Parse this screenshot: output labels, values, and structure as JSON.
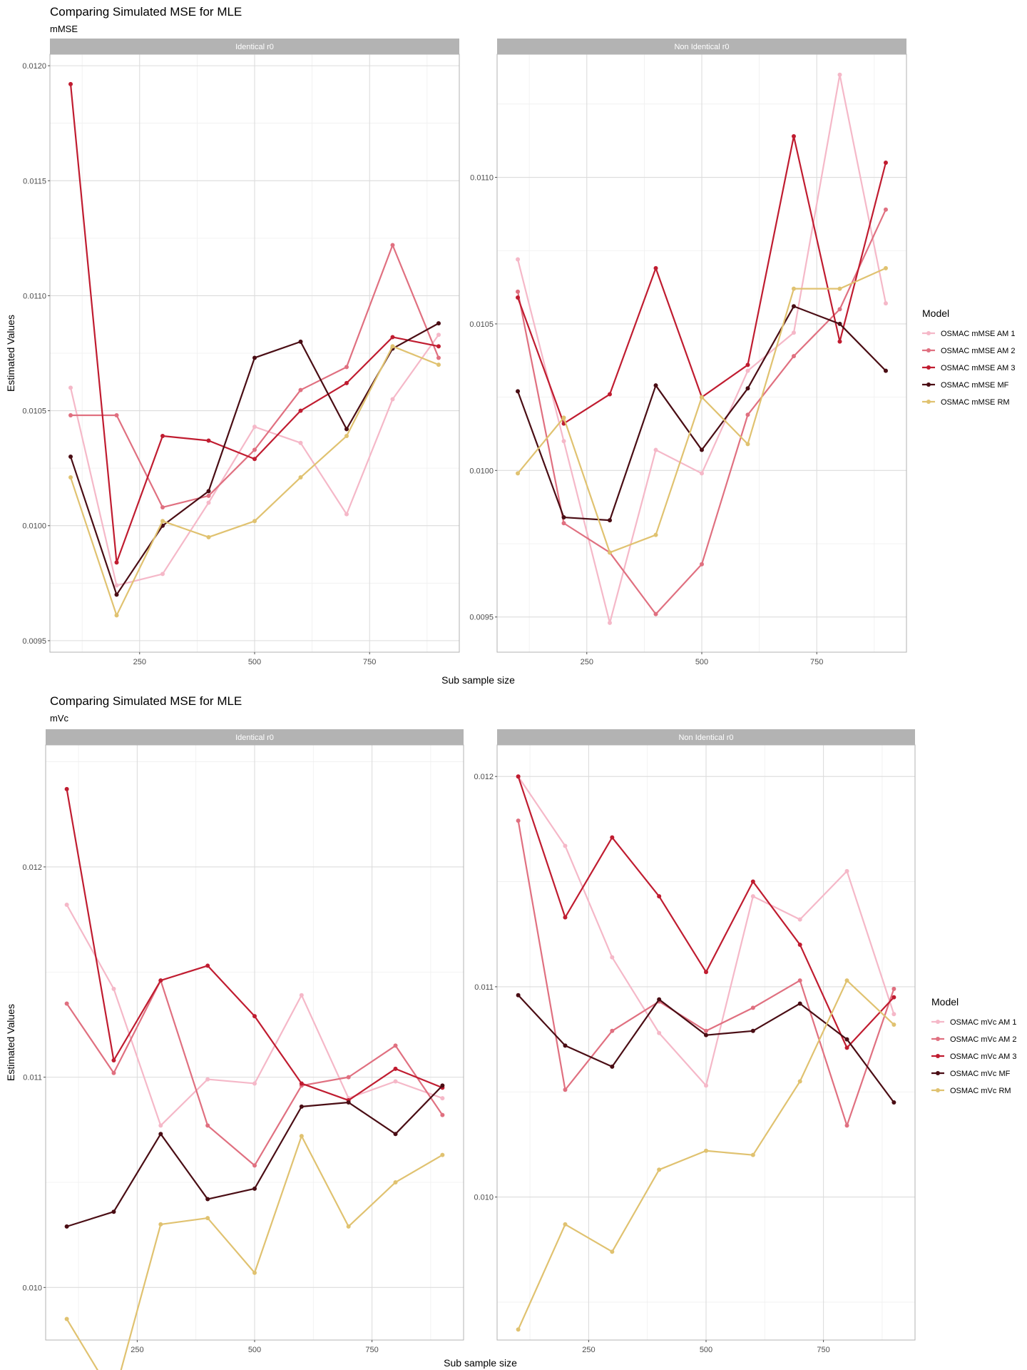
{
  "colors": {
    "AM1": "#f5b8c8",
    "AM2": "#e07080",
    "AM3": "#c01c30",
    "MF": "#4a0d14",
    "RM": "#e0c270"
  },
  "chart_data": [
    {
      "type": "line",
      "title": "Comparing Simulated MSE for MLE",
      "subtitle": "mMSE",
      "xlabel": "Sub sample size",
      "ylabel": "Estimated Values",
      "legend_title": "Model",
      "legend_position": "right",
      "x": [
        100,
        200,
        300,
        400,
        500,
        600,
        700,
        800,
        900
      ],
      "x_ticks": [
        250,
        500,
        750
      ],
      "panels": [
        {
          "strip": "Identical r0",
          "ylim": [
            0.00945,
            0.01205
          ],
          "y_ticks": [
            0.0095,
            0.01,
            0.0105,
            0.011,
            0.0115,
            0.012
          ],
          "y_tick_labels": [
            "0.0095",
            "0.0100",
            "0.0105",
            "0.0110",
            "0.0115",
            "0.0120"
          ],
          "series": [
            {
              "key": "AM1",
              "values": [
                0.0106,
                0.00974,
                0.00979,
                0.0101,
                0.01043,
                0.01036,
                0.01005,
                0.01055,
                0.01083
              ]
            },
            {
              "key": "AM2",
              "values": [
                0.01048,
                0.01048,
                0.01008,
                0.01013,
                0.01033,
                0.01059,
                0.01069,
                0.01122,
                0.01073
              ]
            },
            {
              "key": "AM3",
              "values": [
                0.01192,
                0.00984,
                0.01039,
                0.01037,
                0.01029,
                0.0105,
                0.01062,
                0.01082,
                0.01078
              ]
            },
            {
              "key": "MF",
              "values": [
                0.0103,
                0.0097,
                0.01,
                0.01015,
                0.01073,
                0.0108,
                0.01042,
                0.01077,
                0.01088
              ]
            },
            {
              "key": "RM",
              "values": [
                0.01021,
                0.00961,
                0.01002,
                0.00995,
                0.01002,
                0.01021,
                0.01039,
                0.01078,
                0.0107
              ]
            }
          ]
        },
        {
          "strip": "Non Identical r0",
          "ylim": [
            0.00938,
            0.01142
          ],
          "y_ticks": [
            0.0095,
            0.01,
            0.0105,
            0.011
          ],
          "y_tick_labels": [
            "0.0095",
            "0.0100",
            "0.0105",
            "0.0110"
          ],
          "series": [
            {
              "key": "AM1",
              "values": [
                0.01072,
                0.0101,
                0.00948,
                0.01007,
                0.00999,
                0.01034,
                0.01047,
                0.01135,
                0.01057
              ]
            },
            {
              "key": "AM2",
              "values": [
                0.01061,
                0.00982,
                0.00972,
                0.00951,
                0.00968,
                0.01019,
                0.01039,
                0.01055,
                0.01089
              ]
            },
            {
              "key": "AM3",
              "values": [
                0.01059,
                0.01016,
                0.01026,
                0.01069,
                0.01025,
                0.01036,
                0.01114,
                0.01044,
                0.01105
              ]
            },
            {
              "key": "MF",
              "values": [
                0.01027,
                0.00984,
                0.00983,
                0.01029,
                0.01007,
                0.01028,
                0.01056,
                0.0105,
                0.01034
              ]
            },
            {
              "key": "RM",
              "values": [
                0.00999,
                0.01018,
                0.00972,
                0.00978,
                0.01025,
                0.01009,
                0.01062,
                0.01062,
                0.01069
              ]
            }
          ]
        }
      ],
      "legend": [
        {
          "key": "AM1",
          "label": "OSMAC mMSE AM 1"
        },
        {
          "key": "AM2",
          "label": "OSMAC mMSE AM 2"
        },
        {
          "key": "AM3",
          "label": "OSMAC mMSE AM 3"
        },
        {
          "key": "MF",
          "label": "OSMAC mMSE MF"
        },
        {
          "key": "RM",
          "label": "OSMAC mMSE RM"
        }
      ]
    },
    {
      "type": "line",
      "title": "Comparing Simulated MSE for MLE",
      "subtitle": "mVc",
      "xlabel": "Sub sample size",
      "ylabel": "Estimated Values",
      "legend_title": "Model",
      "legend_position": "right",
      "x": [
        100,
        200,
        300,
        400,
        500,
        600,
        700,
        800,
        900
      ],
      "x_ticks": [
        250,
        500,
        750
      ],
      "panels": [
        {
          "strip": "Identical r0",
          "ylim": [
            0.00975,
            0.01258
          ],
          "y_ticks": [
            0.01,
            0.011,
            0.012
          ],
          "y_tick_labels": [
            "0.010",
            "0.011",
            "0.012"
          ],
          "series": [
            {
              "key": "AM1",
              "values": [
                0.01182,
                0.01142,
                0.01077,
                0.01099,
                0.01097,
                0.01139,
                0.0109,
                0.01098,
                0.0109
              ]
            },
            {
              "key": "AM2",
              "values": [
                0.01135,
                0.01102,
                0.01146,
                0.01077,
                0.01058,
                0.01096,
                0.011,
                0.01115,
                0.01082
              ]
            },
            {
              "key": "AM3",
              "values": [
                0.01237,
                0.01108,
                0.01146,
                0.01153,
                0.01129,
                0.01097,
                0.01089,
                0.01104,
                0.01095
              ]
            },
            {
              "key": "MF",
              "values": [
                0.01029,
                0.01036,
                0.01073,
                0.01042,
                0.01047,
                0.01086,
                0.01088,
                0.01073,
                0.01096
              ]
            },
            {
              "key": "RM",
              "values": [
                0.00985,
                0.00948,
                0.0103,
                0.01033,
                0.01007,
                0.01072,
                0.01029,
                0.0105,
                0.01063
              ]
            }
          ]
        },
        {
          "strip": "Non Identical r0",
          "ylim": [
            0.00932,
            0.01215
          ],
          "y_ticks": [
            0.01,
            0.011,
            0.012
          ],
          "y_tick_labels": [
            "0.010",
            "0.011",
            "0.012"
          ],
          "series": [
            {
              "key": "AM1",
              "values": [
                0.012,
                0.01167,
                0.01114,
                0.01078,
                0.01053,
                0.01143,
                0.01132,
                0.01155,
                0.01087
              ]
            },
            {
              "key": "AM2",
              "values": [
                0.01179,
                0.01051,
                0.01079,
                0.01093,
                0.01079,
                0.0109,
                0.01103,
                0.01034,
                0.01099
              ]
            },
            {
              "key": "AM3",
              "values": [
                0.012,
                0.01133,
                0.01171,
                0.01143,
                0.01107,
                0.0115,
                0.0112,
                0.01071,
                0.01095
              ]
            },
            {
              "key": "MF",
              "values": [
                0.01096,
                0.01072,
                0.01062,
                0.01094,
                0.01077,
                0.01079,
                0.01092,
                0.01075,
                0.01045
              ]
            },
            {
              "key": "RM",
              "values": [
                0.00937,
                0.00987,
                0.00974,
                0.01013,
                0.01022,
                0.0102,
                0.01055,
                0.01103,
                0.01082
              ]
            }
          ]
        }
      ],
      "legend": [
        {
          "key": "AM1",
          "label": "OSMAC mVc AM 1"
        },
        {
          "key": "AM2",
          "label": "OSMAC mVc AM 2"
        },
        {
          "key": "AM3",
          "label": "OSMAC mVc AM 3"
        },
        {
          "key": "MF",
          "label": "OSMAC mVc MF"
        },
        {
          "key": "RM",
          "label": "OSMAC mVc RM"
        }
      ]
    }
  ]
}
